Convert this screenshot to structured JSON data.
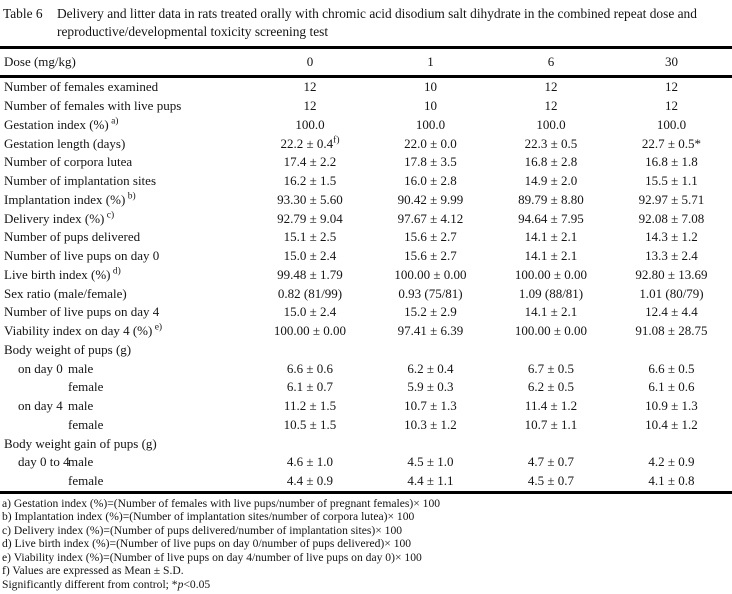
{
  "caption": {
    "label": "Table 6",
    "title": "Delivery and litter data in rats treated orally with chromic acid disodium salt dihydrate in the combined repeat dose and reproductive/developmental toxicity screening test"
  },
  "table": {
    "dose_label": "Dose (mg/kg)",
    "doses": [
      "0",
      "1",
      "6",
      "30"
    ],
    "rows": [
      {
        "label": "Number of females examined",
        "values": [
          "12",
          "10",
          "12",
          "12"
        ]
      },
      {
        "label": "Number of females with live pups",
        "values": [
          "12",
          "10",
          "12",
          "12"
        ]
      },
      {
        "label": "Gestation index (%)",
        "label_sup": "a)",
        "values": [
          "100.0",
          "100.0",
          "100.0",
          "100.0"
        ]
      },
      {
        "label": "Gestation length (days)",
        "values": [
          "22.2 ± 0.4",
          "22.0 ± 0.0",
          "22.3 ± 0.5",
          "22.7 ± 0.5*"
        ],
        "value_sups": [
          "f)",
          null,
          null,
          null
        ]
      },
      {
        "label": "Number of corpora lutea",
        "values": [
          "17.4 ± 2.2",
          "17.8 ± 3.5",
          "16.8 ± 2.8",
          "16.8 ± 1.8"
        ]
      },
      {
        "label": "Number of implantation sites",
        "values": [
          "16.2 ± 1.5",
          "16.0 ± 2.8",
          "14.9 ± 2.0",
          "15.5 ± 1.1"
        ]
      },
      {
        "label": "Implantation index (%)",
        "label_sup": "b)",
        "values": [
          "93.30 ± 5.60",
          "90.42 ± 9.99",
          "89.79 ± 8.80",
          "92.97 ± 5.71"
        ]
      },
      {
        "label": "Delivery index (%)",
        "label_sup": "c)",
        "values": [
          "92.79 ± 9.04",
          "97.67 ± 4.12",
          "94.64 ± 7.95",
          "92.08 ± 7.08"
        ]
      },
      {
        "label": "Number of pups delivered",
        "values": [
          "15.1 ± 2.5",
          "15.6 ± 2.7",
          "14.1 ± 2.1",
          "14.3 ± 1.2"
        ]
      },
      {
        "label": "Number of live pups on day 0",
        "values": [
          "15.0 ± 2.4",
          "15.6 ± 2.7",
          "14.1 ± 2.1",
          "13.3 ± 2.4"
        ]
      },
      {
        "label": "Live birth index (%)",
        "label_sup": "d)",
        "values": [
          "99.48 ± 1.79",
          "100.00 ± 0.00",
          "100.00 ± 0.00",
          "92.80 ± 13.69"
        ]
      },
      {
        "label": "Sex ratio (male/female)",
        "values": [
          "0.82 (81/99)",
          "0.93 (75/81)",
          "1.09 (88/81)",
          "1.01 (80/79)"
        ]
      },
      {
        "label": "Number of live pups on day 4",
        "values": [
          "15.0 ± 2.4",
          "15.2 ± 2.9",
          "14.1 ± 2.1",
          "12.4 ± 4.4"
        ]
      },
      {
        "label": "Viability index on day 4 (%)",
        "label_sup": "e)",
        "values": [
          "100.00 ± 0.00",
          "97.41 ± 6.39",
          "100.00 ± 0.00",
          "91.08 ± 28.75"
        ]
      },
      {
        "label": "Body weight of pups (g)",
        "section": true,
        "values": [
          "",
          "",
          "",
          ""
        ]
      },
      {
        "indent1": "on day 0",
        "indent2": "male",
        "values": [
          "6.6 ± 0.6",
          "6.2 ± 0.4",
          "6.7 ± 0.5",
          "6.6 ± 0.5"
        ]
      },
      {
        "indent1": "",
        "indent2": "female",
        "values": [
          "6.1 ± 0.7",
          "5.9 ± 0.3",
          "6.2 ± 0.5",
          "6.1 ± 0.6"
        ]
      },
      {
        "indent1": "on day 4",
        "indent2": "male",
        "values": [
          "11.2 ± 1.5",
          "10.7 ± 1.3",
          "11.4 ± 1.2",
          "10.9 ± 1.3"
        ]
      },
      {
        "indent1": "",
        "indent2": "female",
        "values": [
          "10.5 ± 1.5",
          "10.3 ± 1.2",
          "10.7 ± 1.1",
          "10.4 ± 1.2"
        ]
      },
      {
        "label": "Body weight gain of pups (g)",
        "section": true,
        "values": [
          "",
          "",
          "",
          ""
        ]
      },
      {
        "indent1": "day 0 to 4",
        "indent2": "male",
        "values": [
          "4.6 ± 1.0",
          "4.5 ± 1.0",
          "4.7 ± 0.7",
          "4.2 ± 0.9"
        ]
      },
      {
        "indent1": "",
        "indent2": "female",
        "values": [
          "4.4 ± 0.9",
          "4.4 ± 1.1",
          "4.5 ± 0.7",
          "4.1 ± 0.8"
        ]
      }
    ]
  },
  "footnotes": {
    "lines": [
      "a) Gestation index (%)=(Number of females with live pups/number of pregnant females)× 100",
      "b) Implantation index (%)=(Number of implantation sites/number of corpora lutea)× 100",
      "c) Delivery index (%)=(Number of pups delivered/number of implantation sites)× 100",
      "d) Live birth index (%)=(Number of live pups on day 0/number of pups delivered)× 100",
      "e) Viability index (%)=(Number of live pups on day 4/number of live pups on day 0)× 100",
      "f) Values are expressed as Mean ± S.D."
    ],
    "significance": {
      "prefix": "Significantly different from control; *",
      "italic": "p",
      "suffix": "<0.05"
    }
  }
}
